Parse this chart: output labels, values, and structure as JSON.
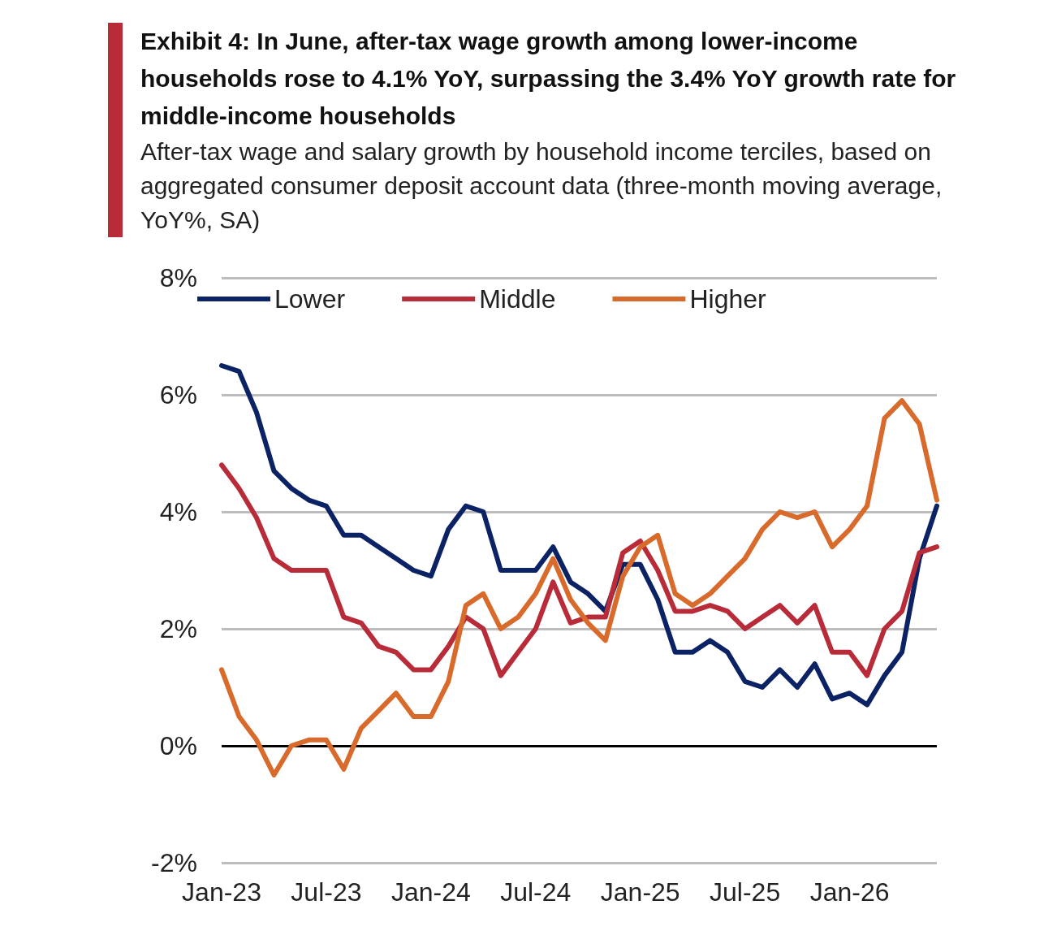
{
  "chart_data": {
    "type": "line",
    "title": "Exhibit 4: In June, after-tax  wage growth among lower-income households rose to 4.1% YoY, surpassing the 3.4% YoY growth rate for middle-income households",
    "subtitle": "After-tax wage and salary growth by household income terciles, based on aggregated consumer deposit account data (three-month moving average, YoY%, SA)",
    "categories": [
      "Jan-23",
      null,
      null,
      null,
      null,
      null,
      "Jul-23",
      null,
      null,
      null,
      null,
      null,
      "Jan-24",
      null,
      null,
      null,
      null,
      null,
      "Jul-24",
      null,
      null,
      null,
      null,
      null,
      "Jan-25",
      null,
      null,
      null,
      null,
      null,
      "Jul-25",
      null,
      null,
      null,
      null,
      null,
      "Jan-26",
      null,
      null,
      null,
      null,
      null
    ],
    "series": [
      {
        "name": "Lower",
        "color": "#0b2265",
        "values": [
          6.5,
          6.4,
          5.7,
          4.7,
          4.4,
          4.2,
          4.1,
          3.6,
          3.6,
          3.4,
          3.2,
          3.0,
          2.9,
          3.7,
          4.1,
          4.0,
          3.0,
          3.0,
          3.0,
          3.4,
          2.8,
          2.6,
          2.3,
          3.1,
          3.1,
          2.5,
          1.6,
          1.6,
          1.8,
          1.6,
          1.1,
          1.0,
          1.3,
          1.0,
          1.4,
          0.8,
          0.9,
          0.7,
          1.2,
          1.6,
          3.2,
          4.1
        ]
      },
      {
        "name": "Middle",
        "color": "#b82c3a",
        "values": [
          4.8,
          4.4,
          3.9,
          3.2,
          3.0,
          3.0,
          3.0,
          2.2,
          2.1,
          1.7,
          1.6,
          1.3,
          1.3,
          1.7,
          2.2,
          2.0,
          1.2,
          1.6,
          2.0,
          2.8,
          2.1,
          2.2,
          2.2,
          3.3,
          3.5,
          3.0,
          2.3,
          2.3,
          2.4,
          2.3,
          2.0,
          2.2,
          2.4,
          2.1,
          2.4,
          1.6,
          1.6,
          1.2,
          2.0,
          2.3,
          3.3,
          3.4
        ]
      },
      {
        "name": "Higher",
        "color": "#d86b2c",
        "values": [
          1.3,
          0.5,
          0.1,
          -0.5,
          0.0,
          0.1,
          0.1,
          -0.4,
          0.3,
          0.6,
          0.9,
          0.5,
          0.5,
          1.1,
          2.4,
          2.6,
          2.0,
          2.2,
          2.6,
          3.2,
          2.5,
          2.1,
          1.8,
          2.9,
          3.4,
          3.6,
          2.6,
          2.4,
          2.6,
          2.9,
          3.2,
          3.7,
          4.0,
          3.9,
          4.0,
          3.4,
          3.7,
          4.1,
          5.6,
          5.9,
          5.5,
          4.2
        ]
      }
    ],
    "ylim": [
      -2,
      8
    ],
    "yticks": [
      {
        "value": -2,
        "label": "-2%"
      },
      {
        "value": 0,
        "label": "0%"
      },
      {
        "value": 2,
        "label": "2%"
      },
      {
        "value": 4,
        "label": "4%"
      },
      {
        "value": 6,
        "label": "6%"
      },
      {
        "value": 8,
        "label": "8%"
      }
    ],
    "ref_lines": [
      {
        "axis": "y",
        "value": 0,
        "color": "#000000",
        "line_style": "solid"
      }
    ],
    "grid": "y",
    "legend": "top",
    "marker": "none",
    "line_style": "solid"
  }
}
